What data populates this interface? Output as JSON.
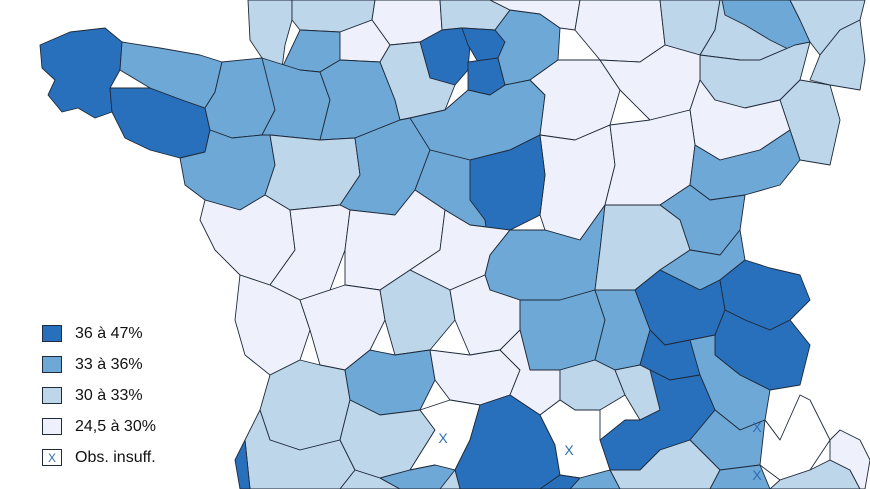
{
  "colors": {
    "c36_47": "#2870bc",
    "c33_36": "#6da8d6",
    "c30_33": "#bdd6ea",
    "c24_30": "#eef1fb",
    "insufficient": "#ffffff",
    "border": "#1f2a3a"
  },
  "legend": {
    "items": [
      {
        "label": "36 à 47%",
        "color_key": "c36_47",
        "symbol": ""
      },
      {
        "label": "33 à 36%",
        "color_key": "c33_36",
        "symbol": ""
      },
      {
        "label": "30 à 33%",
        "color_key": "c30_33",
        "symbol": ""
      },
      {
        "label": "24,5 à 30%",
        "color_key": "c24_30",
        "symbol": ""
      },
      {
        "label": "Obs. insuff.",
        "color_key": "insufficient",
        "symbol": "X"
      }
    ]
  },
  "map": {
    "insufficient_mark": "X",
    "regions": [
      {
        "id": "finistere",
        "cls": "c36_47"
      },
      {
        "id": "morbihan",
        "cls": "c36_47"
      },
      {
        "id": "cotes-armor",
        "cls": "c33_36"
      },
      {
        "id": "ille-vilaine",
        "cls": "c33_36"
      },
      {
        "id": "manche",
        "cls": "c30_33"
      },
      {
        "id": "calvados",
        "cls": "c30_33"
      },
      {
        "id": "orne",
        "cls": "c33_36"
      },
      {
        "id": "eure",
        "cls": "c24_30"
      },
      {
        "id": "seine-maritime",
        "cls": "c24_30"
      },
      {
        "id": "oise",
        "cls": "c30_33"
      },
      {
        "id": "val-oise",
        "cls": "c36_47"
      },
      {
        "id": "paris-ring",
        "cls": "c36_47"
      },
      {
        "id": "essonne",
        "cls": "c36_47"
      },
      {
        "id": "seine-marne",
        "cls": "c33_36"
      },
      {
        "id": "aisne",
        "cls": "c24_30"
      },
      {
        "id": "marne",
        "cls": "c24_30"
      },
      {
        "id": "ardennes",
        "cls": "c30_33"
      },
      {
        "id": "meuse",
        "cls": "c30_33"
      },
      {
        "id": "moselle",
        "cls": "c33_36"
      },
      {
        "id": "bas-rhin",
        "cls": "c30_33"
      },
      {
        "id": "meurthe-moselle",
        "cls": "c30_33"
      },
      {
        "id": "vosges",
        "cls": "c30_33"
      },
      {
        "id": "haut-rhin",
        "cls": "c30_33"
      },
      {
        "id": "mayenne",
        "cls": "c33_36"
      },
      {
        "id": "sarthe",
        "cls": "c33_36"
      },
      {
        "id": "eure-loir",
        "cls": "c30_33"
      },
      {
        "id": "loiret",
        "cls": "c33_36"
      },
      {
        "id": "yonne",
        "cls": "c24_30"
      },
      {
        "id": "aube",
        "cls": "c24_30"
      },
      {
        "id": "haute-marne",
        "cls": "c24_30"
      },
      {
        "id": "loire-atlantique",
        "cls": "c33_36"
      },
      {
        "id": "maine-loire",
        "cls": "c30_33"
      },
      {
        "id": "indre-loire",
        "cls": "c33_36"
      },
      {
        "id": "loir-cher",
        "cls": "c33_36"
      },
      {
        "id": "cher",
        "cls": "c24_30"
      },
      {
        "id": "nievre",
        "cls": "c36_47"
      },
      {
        "id": "cote-or",
        "cls": "c24_30"
      },
      {
        "id": "haute-saone",
        "cls": "c33_36"
      },
      {
        "id": "doubs",
        "cls": "c33_36"
      },
      {
        "id": "vendee",
        "cls": "c24_30"
      },
      {
        "id": "deux-sevres",
        "cls": "c24_30"
      },
      {
        "id": "vienne",
        "cls": "c24_30"
      },
      {
        "id": "indre",
        "cls": "c24_30"
      },
      {
        "id": "allier",
        "cls": "c33_36"
      },
      {
        "id": "saone-loire",
        "cls": "c30_33"
      },
      {
        "id": "jura",
        "cls": "c33_36"
      },
      {
        "id": "ain",
        "cls": "c36_47"
      },
      {
        "id": "haute-savoie",
        "cls": "c36_47"
      },
      {
        "id": "savoie",
        "cls": "c36_47"
      },
      {
        "id": "charente-maritime",
        "cls": "c24_30"
      },
      {
        "id": "charente",
        "cls": "c24_30"
      },
      {
        "id": "haute-vienne",
        "cls": "c30_33"
      },
      {
        "id": "creuse",
        "cls": "c24_30"
      },
      {
        "id": "puy-dome",
        "cls": "c33_36"
      },
      {
        "id": "loire",
        "cls": "c33_36"
      },
      {
        "id": "rhone",
        "cls": "c36_47"
      },
      {
        "id": "isere",
        "cls": "c33_36"
      },
      {
        "id": "gironde",
        "cls": "c30_33"
      },
      {
        "id": "dordogne",
        "cls": "c33_36"
      },
      {
        "id": "correze",
        "cls": "c24_30"
      },
      {
        "id": "cantal",
        "cls": "c24_30"
      },
      {
        "id": "haute-loire",
        "cls": "c30_33"
      },
      {
        "id": "ardeche",
        "cls": "c30_33"
      },
      {
        "id": "drome",
        "cls": "c36_47"
      },
      {
        "id": "hautes-alpes",
        "cls": "c33_36"
      },
      {
        "id": "landes",
        "cls": "c30_33"
      },
      {
        "id": "lot-garonne",
        "cls": "c30_33"
      },
      {
        "id": "lot",
        "cls": "insufficient"
      },
      {
        "id": "aveyron",
        "cls": "c36_47"
      },
      {
        "id": "lozere",
        "cls": "insufficient"
      },
      {
        "id": "gard",
        "cls": "c30_33"
      },
      {
        "id": "vaucluse",
        "cls": "c33_36"
      },
      {
        "id": "alpes-hp",
        "cls": "c33_36"
      },
      {
        "id": "alpes-maritimes",
        "cls": "insufficient"
      },
      {
        "id": "var",
        "cls": "c30_33"
      },
      {
        "id": "pyrenees-atl",
        "cls": "c36_47"
      },
      {
        "id": "gers",
        "cls": "c30_33"
      },
      {
        "id": "tarn-garonne",
        "cls": "c33_36"
      },
      {
        "id": "haute-garonne",
        "cls": "c36_47"
      },
      {
        "id": "herault",
        "cls": "c30_33"
      },
      {
        "id": "bouches-rhone",
        "cls": "c24_30"
      }
    ]
  }
}
